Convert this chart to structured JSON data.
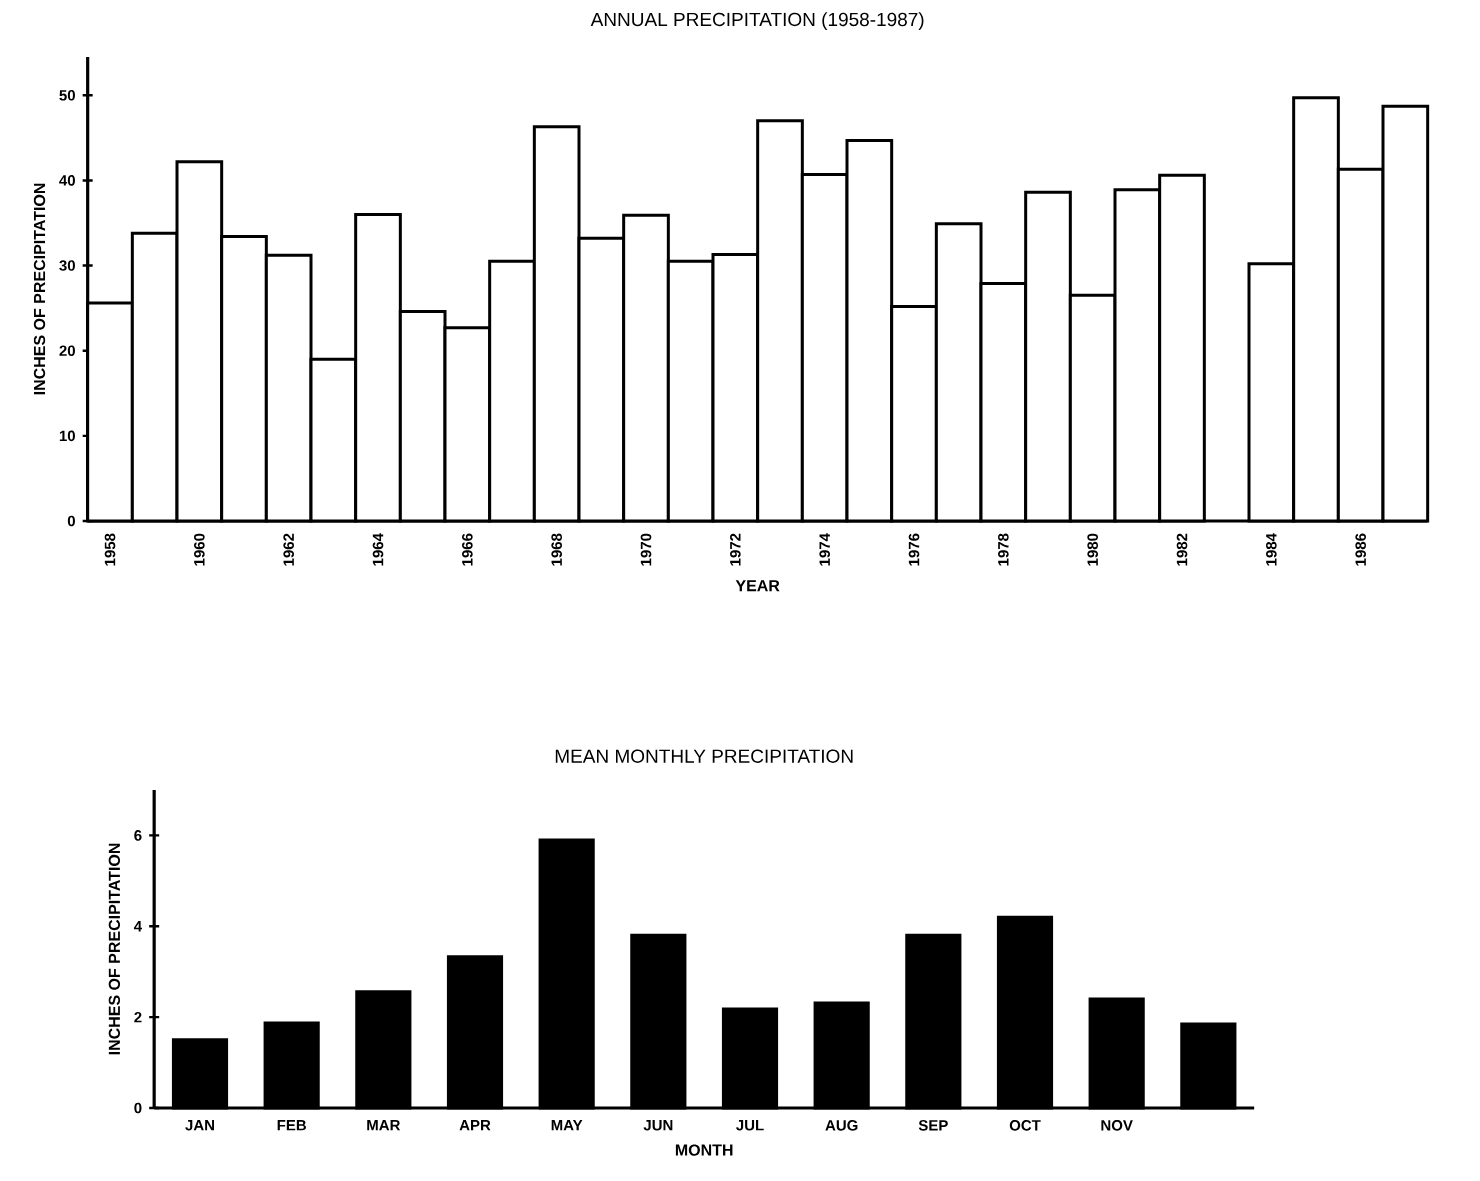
{
  "chart_data": [
    {
      "type": "bar",
      "title": "ANNUAL PRECIPITATION (1958-1987)",
      "xlabel": "YEAR",
      "ylabel": "INCHES OF PRECIPITATION",
      "categories": [
        "1958",
        null,
        "1960",
        null,
        "1962",
        null,
        "1964",
        null,
        "1966",
        null,
        "1968",
        null,
        "1970",
        null,
        "1972",
        null,
        "1974",
        null,
        "1976",
        null,
        "1978",
        null,
        "1980",
        null,
        "1982",
        null,
        "1984",
        null,
        "1986",
        null
      ],
      "values": [
        25.6,
        33.8,
        42.2,
        33.4,
        31.2,
        19.0,
        36.0,
        24.6,
        22.7,
        30.5,
        46.3,
        33.2,
        35.9,
        30.5,
        31.3,
        47.0,
        40.7,
        44.7,
        25.2,
        34.9,
        27.9,
        38.6,
        26.5,
        38.9,
        40.6,
        null,
        30.2,
        49.7,
        41.3,
        48.7
      ],
      "color": "#ffffff",
      "ylim": [
        0,
        54.5
      ],
      "yticks": [
        0,
        10,
        20,
        30,
        40,
        50
      ]
    },
    {
      "type": "bar",
      "title": "MEAN MONTHLY PRECIPITATION",
      "xlabel": "MONTH",
      "ylabel": "INCHES OF PRECIPITATION",
      "categories": [
        "JAN",
        "FEB",
        "MAR",
        "APR",
        "MAY",
        "JUN",
        "JUL",
        "AUG",
        "SEP",
        "OCT",
        "NOV",
        null
      ],
      "values": [
        1.5,
        1.87,
        2.56,
        3.33,
        5.9,
        3.8,
        2.18,
        2.31,
        3.8,
        4.2,
        2.4,
        1.85
      ],
      "color": "#000000",
      "ylim": [
        0,
        7
      ],
      "yticks": [
        0,
        2,
        4,
        6
      ]
    }
  ]
}
